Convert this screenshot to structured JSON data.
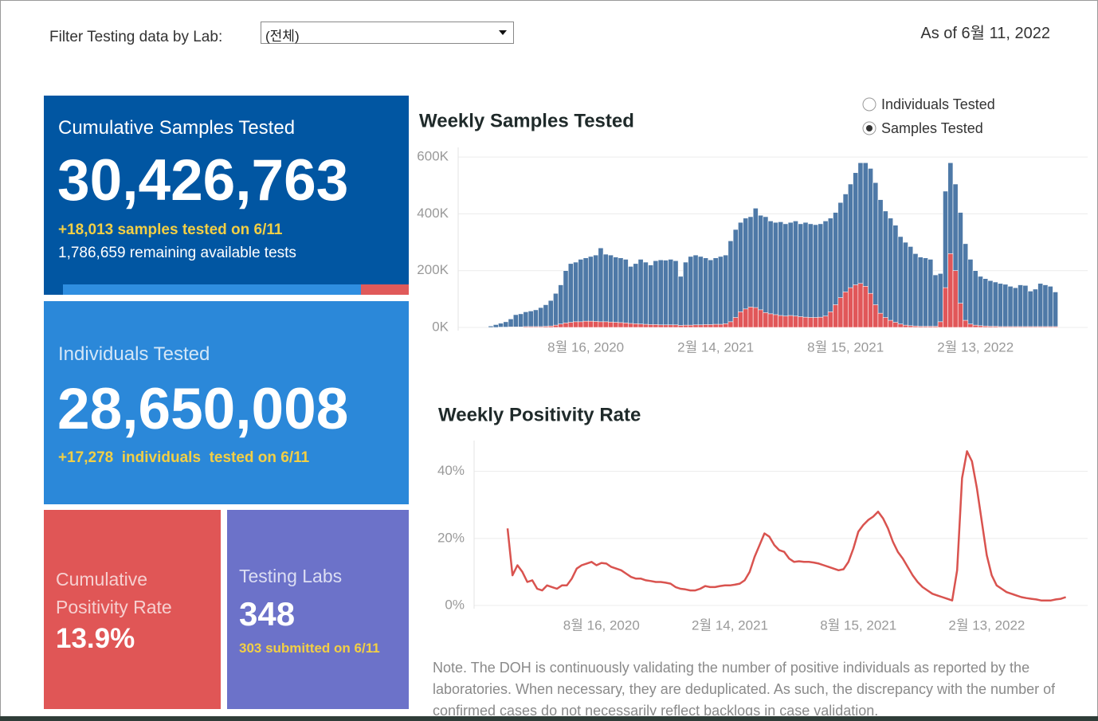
{
  "filter": {
    "label": "Filter Testing data by Lab:",
    "selected": "(전체)"
  },
  "as_of": "As of 6월 11, 2022",
  "cards": {
    "samples": {
      "title": "Cumulative Samples Tested",
      "value": "30,426,763",
      "today": "+18,013 samples tested on 6/11",
      "remaining": "1,786,659 remaining available tests"
    },
    "individuals": {
      "title": "Individuals Tested",
      "value": "28,650,008",
      "today": "+17,278  individuals  tested on 6/11"
    },
    "positivity": {
      "title": "Cumulative Positivity Rate",
      "value": "13.9%"
    },
    "labs": {
      "title": "Testing Labs",
      "value": "348",
      "today": "303 submitted on 6/11"
    }
  },
  "toggle": {
    "options": [
      "Individuals Tested",
      "Samples Tested"
    ],
    "selected": 1
  },
  "chart_data": [
    {
      "type": "bar",
      "title": "Weekly Samples Tested",
      "categories": [
        null,
        null,
        null,
        null,
        null,
        null,
        null,
        null,
        null,
        null,
        null,
        null,
        null,
        null,
        null,
        null,
        null,
        null,
        null,
        "8월 16, 2020",
        null,
        null,
        null,
        null,
        null,
        null,
        null,
        null,
        null,
        null,
        null,
        null,
        null,
        null,
        null,
        null,
        null,
        null,
        null,
        null,
        null,
        null,
        null,
        null,
        null,
        "2월 14, 2021",
        null,
        null,
        null,
        null,
        null,
        null,
        null,
        null,
        null,
        null,
        null,
        null,
        null,
        null,
        null,
        null,
        null,
        null,
        null,
        null,
        null,
        null,
        null,
        null,
        null,
        "8월 15, 2021",
        null,
        null,
        null,
        null,
        null,
        null,
        null,
        null,
        null,
        null,
        null,
        null,
        null,
        null,
        null,
        null,
        null,
        null,
        null,
        null,
        null,
        null,
        null,
        null,
        null,
        "2월 13, 2022",
        null,
        null,
        null,
        null,
        null,
        null,
        null,
        null,
        null,
        null,
        null,
        null,
        null,
        null,
        null,
        null
      ],
      "series": [
        {
          "color": "#4e79a7",
          "values": [
            5000,
            10000,
            15000,
            20000,
            30000,
            45000,
            48000,
            55000,
            58000,
            62000,
            70000,
            80000,
            95000,
            120000,
            150000,
            200000,
            225000,
            230000,
            240000,
            245000,
            250000,
            255000,
            280000,
            258000,
            255000,
            248000,
            245000,
            240000,
            215000,
            225000,
            240000,
            230000,
            220000,
            235000,
            238000,
            237000,
            240000,
            235000,
            180000,
            230000,
            250000,
            255000,
            250000,
            245000,
            238000,
            245000,
            250000,
            255000,
            305000,
            345000,
            370000,
            385000,
            390000,
            420000,
            395000,
            390000,
            375000,
            370000,
            372000,
            365000,
            370000,
            375000,
            365000,
            370000,
            365000,
            362000,
            365000,
            375000,
            385000,
            405000,
            440000,
            470000,
            505000,
            545000,
            580000,
            580000,
            560000,
            510000,
            450000,
            410000,
            385000,
            360000,
            320000,
            300000,
            285000,
            260000,
            248000,
            245000,
            240000,
            185000,
            190000,
            480000,
            580000,
            505000,
            405000,
            295000,
            240000,
            200000,
            180000,
            172000,
            165000,
            160000,
            155000,
            152000,
            145000,
            140000,
            150000,
            148000,
            128000,
            135000,
            155000,
            150000,
            145000,
            125000
          ]
        },
        {
          "color": "#e15759",
          "values": [
            0,
            0,
            1000,
            1000,
            2000,
            2000,
            2000,
            3000,
            3000,
            3000,
            3000,
            4000,
            5000,
            8000,
            12000,
            16000,
            18000,
            20000,
            20000,
            22000,
            22000,
            21000,
            20000,
            20000,
            19000,
            18000,
            17000,
            16000,
            14000,
            13000,
            12000,
            11000,
            10000,
            10000,
            9000,
            9000,
            9000,
            9000,
            7000,
            8000,
            8000,
            9000,
            9000,
            10000,
            10000,
            11000,
            11000,
            13000,
            20000,
            35000,
            55000,
            65000,
            72000,
            70000,
            62000,
            52000,
            48000,
            45000,
            42000,
            40000,
            42000,
            40000,
            38000,
            36000,
            35000,
            35000,
            36000,
            40000,
            55000,
            80000,
            105000,
            125000,
            140000,
            150000,
            155000,
            145000,
            120000,
            80000,
            50000,
            35000,
            25000,
            18000,
            12000,
            8000,
            6000,
            5000,
            4000,
            4000,
            4000,
            4000,
            20000,
            140000,
            260000,
            200000,
            85000,
            25000,
            12000,
            8000,
            6000,
            5000,
            4000,
            4000,
            3000,
            3000,
            3000,
            3000,
            3000,
            3000,
            3000,
            3000,
            3000,
            3000,
            3000,
            3000
          ]
        }
      ],
      "ylim": [
        0,
        620000
      ],
      "yticks": [
        {
          "value": 0,
          "label": "0K"
        },
        {
          "value": 200000,
          "label": "200K"
        },
        {
          "value": 400000,
          "label": "400K"
        },
        {
          "value": 600000,
          "label": "600K"
        }
      ],
      "grid": true
    },
    {
      "type": "line",
      "title": "Weekly Positivity Rate",
      "categories": [
        null,
        null,
        null,
        null,
        null,
        null,
        null,
        null,
        null,
        null,
        null,
        null,
        null,
        null,
        null,
        null,
        null,
        null,
        null,
        "8월 16, 2020",
        null,
        null,
        null,
        null,
        null,
        null,
        null,
        null,
        null,
        null,
        null,
        null,
        null,
        null,
        null,
        null,
        null,
        null,
        null,
        null,
        null,
        null,
        null,
        null,
        null,
        "2월 14, 2021",
        null,
        null,
        null,
        null,
        null,
        null,
        null,
        null,
        null,
        null,
        null,
        null,
        null,
        null,
        null,
        null,
        null,
        null,
        null,
        null,
        null,
        null,
        null,
        null,
        null,
        "8월 15, 2021",
        null,
        null,
        null,
        null,
        null,
        null,
        null,
        null,
        null,
        null,
        null,
        null,
        null,
        null,
        null,
        null,
        null,
        null,
        null,
        null,
        null,
        null,
        null,
        null,
        null,
        "2월 13, 2022",
        null,
        null,
        null,
        null,
        null,
        null,
        null,
        null,
        null,
        null,
        null,
        null,
        null,
        null,
        null,
        null
      ],
      "series": [
        {
          "color": "#d9534f",
          "values": [
            23,
            9,
            12,
            10,
            7,
            7.5,
            5,
            4.5,
            6,
            5.5,
            5,
            6,
            6,
            8,
            11,
            12,
            12.5,
            13,
            12,
            12.7,
            12.5,
            11.5,
            11,
            10.5,
            9.5,
            8.5,
            8,
            8,
            7.5,
            7.3,
            7,
            7,
            6.8,
            6.5,
            5.5,
            5,
            4.8,
            4.5,
            4.5,
            5,
            5.8,
            5.5,
            5.5,
            5.8,
            6,
            6,
            6.2,
            6.5,
            7.5,
            10,
            14.5,
            18,
            21.5,
            20.5,
            18,
            16.5,
            16,
            14,
            13,
            13.2,
            13,
            13,
            12.8,
            12.5,
            12,
            11.5,
            11,
            10.5,
            10.8,
            13,
            17,
            22,
            24,
            25.5,
            26.5,
            28,
            26,
            23,
            19,
            16,
            14,
            11.5,
            9,
            7,
            5.5,
            4.5,
            3.5,
            3,
            2.5,
            2,
            1.5,
            10.5,
            38,
            46,
            43,
            35,
            25,
            15,
            9,
            6,
            5,
            4,
            3.5,
            3,
            2.5,
            2.2,
            2,
            1.8,
            1.5,
            1.5,
            1.5,
            1.8,
            2,
            2.5
          ]
        }
      ],
      "ylim": [
        0,
        48
      ],
      "yticks": [
        {
          "value": 0,
          "label": "0%"
        },
        {
          "value": 20,
          "label": "20%"
        },
        {
          "value": 40,
          "label": "40%"
        }
      ],
      "grid": true
    }
  ],
  "note": [
    "Note. The DOH is continuously validating the number of positive individuals as reported by the",
    "laboratories. When necessary, they are deduplicated. As such, the discrepancy with the number of",
    "confirmed cases do not necessarily reflect backlogs in case validation."
  ]
}
